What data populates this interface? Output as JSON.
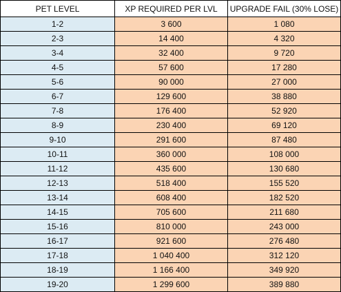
{
  "headers": {
    "level": "PET LEVEL",
    "xp": "XP REQUIRED PER LVL",
    "fail": "UPGRADE FAIL (30% LOSE)"
  },
  "colors": {
    "level_fill": "#dcebf3",
    "value_fill": "#fbd4b4",
    "header_fill": "#ffffff",
    "grid": "#000000"
  },
  "rows": [
    {
      "level": "1-2",
      "xp": "3 600",
      "fail": "1 080"
    },
    {
      "level": "2-3",
      "xp": "14 400",
      "fail": "4 320"
    },
    {
      "level": "3-4",
      "xp": "32 400",
      "fail": "9 720"
    },
    {
      "level": "4-5",
      "xp": "57 600",
      "fail": "17 280"
    },
    {
      "level": "5-6",
      "xp": "90 000",
      "fail": "27 000"
    },
    {
      "level": "6-7",
      "xp": "129 600",
      "fail": "38 880"
    },
    {
      "level": "7-8",
      "xp": "176 400",
      "fail": "52 920"
    },
    {
      "level": "8-9",
      "xp": "230 400",
      "fail": "69 120"
    },
    {
      "level": "9-10",
      "xp": "291 600",
      "fail": "87 480"
    },
    {
      "level": "10-11",
      "xp": "360 000",
      "fail": "108 000"
    },
    {
      "level": "11-12",
      "xp": "435 600",
      "fail": "130 680"
    },
    {
      "level": "12-13",
      "xp": "518 400",
      "fail": "155 520"
    },
    {
      "level": "13-14",
      "xp": "608 400",
      "fail": "182 520"
    },
    {
      "level": "14-15",
      "xp": "705 600",
      "fail": "211 680"
    },
    {
      "level": "15-16",
      "xp": "810 000",
      "fail": "243 000"
    },
    {
      "level": "16-17",
      "xp": "921 600",
      "fail": "276 480"
    },
    {
      "level": "17-18",
      "xp": "1 040 400",
      "fail": "312 120"
    },
    {
      "level": "18-19",
      "xp": "1 166 400",
      "fail": "349 920"
    },
    {
      "level": "19-20",
      "xp": "1 299 600",
      "fail": "389 880"
    }
  ]
}
